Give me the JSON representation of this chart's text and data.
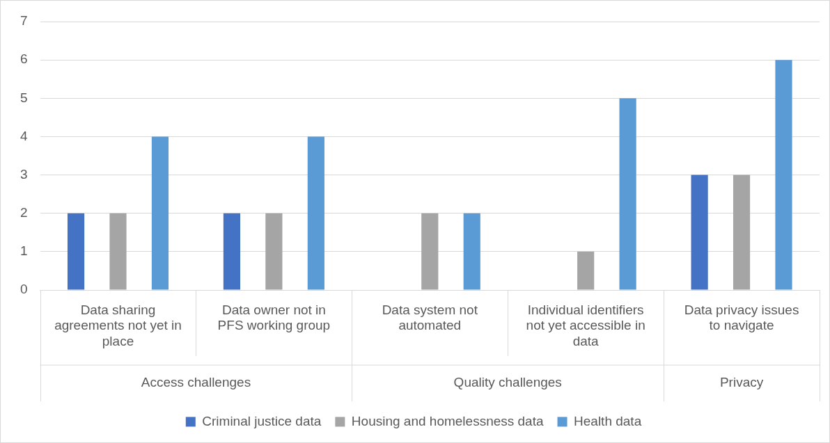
{
  "chart_data": {
    "type": "bar",
    "categories": [
      "Data sharing agreements not yet in place",
      "Data owner not in PFS working group",
      "Data system not automated",
      "Individual identifiers not yet accessible in data",
      "Data privacy issues to navigate"
    ],
    "series": [
      {
        "name": "Criminal justice data",
        "color": "#4472c4",
        "values": [
          2,
          2,
          0,
          0,
          3
        ]
      },
      {
        "name": "Housing and homelessness data",
        "color": "#a5a5a5",
        "values": [
          2,
          2,
          2,
          1,
          3
        ]
      },
      {
        "name": "Health data",
        "color": "#5b9bd5",
        "values": [
          4,
          4,
          2,
          5,
          6
        ]
      }
    ],
    "ylim": [
      0,
      7
    ],
    "yticks": [
      0,
      1,
      2,
      3,
      4,
      5,
      6,
      7
    ],
    "grid": "y",
    "legend": "bottom",
    "annotations": [
      "Access challenges",
      "Quality challenges",
      "Privacy"
    ]
  }
}
